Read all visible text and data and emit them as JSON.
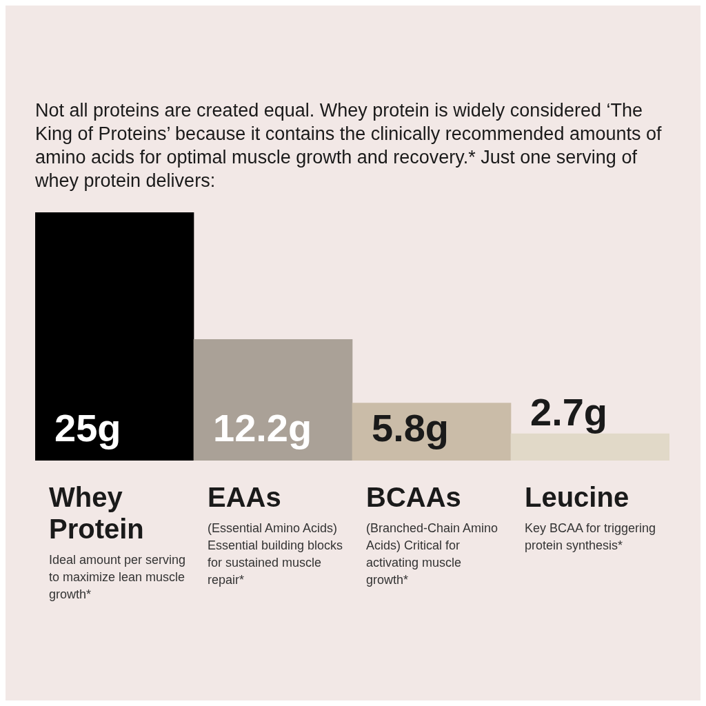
{
  "chart_data": {
    "type": "bar",
    "title": "Not all proteins are created equal. Whey protein is widely considered ‘The King of Proteins’ because it contains the clinically recommended amounts of amino acids for optimal muscle growth and recovery.* Just one serving of whey protein delivers:",
    "categories": [
      "Whey Protein",
      "EAAs",
      "BCAAs",
      "Leucine"
    ],
    "values": [
      25,
      12.2,
      5.8,
      2.7
    ],
    "colors": [
      "#000000",
      "#aaa197",
      "#cabca8",
      "#e1d9c8"
    ],
    "value_labels": [
      "25g",
      "12.2g",
      "5.8g",
      "2.7g"
    ],
    "annotations": [
      "Ideal amount per serving to maximize lean muscle growth*",
      "(Essential Amino Acids) Essential building blocks for sustained muscle repair*",
      "(Branched-Chain Amino Acids) Critical for activating muscle growth*",
      "Key BCAA for triggering protein synthesis*"
    ]
  }
}
